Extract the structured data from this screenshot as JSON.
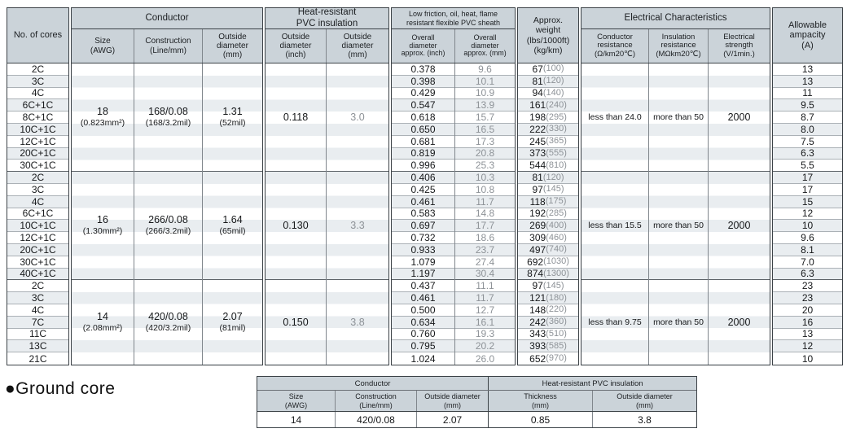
{
  "colors": {
    "header_bg": "#cbd3d9",
    "row_stripe": "#e9edf0",
    "metric_gray": "#8d9297"
  },
  "main_table": {
    "header": {
      "cores": "No. of cores",
      "conductor": {
        "title": "Conductor",
        "size": "Size\n(AWG)",
        "construction": "Construction\n(Line/mm)",
        "od": "Outside\ndiameter\n(mm)"
      },
      "insulation": {
        "title": "Heat-resistant\nPVC insulation",
        "od_inch": "Outside\ndiameter\n(inch)",
        "od_mm": "Outside\ndiameter\n(mm)"
      },
      "sheath": {
        "title": "Low friction, oil, heat, flame\nresistant flexible PVC sheath",
        "od_inch": "Overall\ndiameter\napprox. (inch)",
        "od_mm": "Overall\ndiameter\napprox. (mm)"
      },
      "weight": "Approx.\nweight\n(lbs/1000ft)\n(kg/km)",
      "electrical": {
        "title": "Electrical Characteristics",
        "resistance": "Conductor\nresistance\n(Ω/km20℃)",
        "insulation_res": "Insulation\nresistance\n(MΩkm20℃)",
        "strength": "Electrical\nstrength\n(V/1min.)"
      },
      "ampacity": "Allowable\nampacity\n(A)"
    },
    "groups": [
      {
        "size": "18",
        "size_note": "(0.823mm²)",
        "construction": "168/0.08",
        "construction_note": "(168/3.2mil)",
        "od": "1.31",
        "od_note": "(52mil)",
        "ins_inch": "0.118",
        "ins_mm": "3.0",
        "resistance": "less than 24.0",
        "insulation_res": "more than 50",
        "strength": "2000",
        "rows": [
          {
            "cores": "2C",
            "inch": "0.378",
            "mm": "9.6",
            "lbs": "67",
            "kg": "(100)",
            "amp": "13"
          },
          {
            "cores": "3C",
            "inch": "0.398",
            "mm": "10.1",
            "lbs": "81",
            "kg": "(120)",
            "amp": "13"
          },
          {
            "cores": "4C",
            "inch": "0.429",
            "mm": "10.9",
            "lbs": "94",
            "kg": "(140)",
            "amp": "11"
          },
          {
            "cores": "6C+1C",
            "inch": "0.547",
            "mm": "13.9",
            "lbs": "161",
            "kg": "(240)",
            "amp": "9.5"
          },
          {
            "cores": "8C+1C",
            "inch": "0.618",
            "mm": "15.7",
            "lbs": "198",
            "kg": "(295)",
            "amp": "8.7"
          },
          {
            "cores": "10C+1C",
            "inch": "0.650",
            "mm": "16.5",
            "lbs": "222",
            "kg": "(330)",
            "amp": "8.0"
          },
          {
            "cores": "12C+1C",
            "inch": "0.681",
            "mm": "17.3",
            "lbs": "245",
            "kg": "(365)",
            "amp": "7.5"
          },
          {
            "cores": "20C+1C",
            "inch": "0.819",
            "mm": "20.8",
            "lbs": "373",
            "kg": "(555)",
            "amp": "6.3"
          },
          {
            "cores": "30C+1C",
            "inch": "0.996",
            "mm": "25.3",
            "lbs": "544",
            "kg": "(810)",
            "amp": "5.5"
          }
        ]
      },
      {
        "size": "16",
        "size_note": "(1.30mm²)",
        "construction": "266/0.08",
        "construction_note": "(266/3.2mil)",
        "od": "1.64",
        "od_note": "(65mil)",
        "ins_inch": "0.130",
        "ins_mm": "3.3",
        "resistance": "less than 15.5",
        "insulation_res": "more than 50",
        "strength": "2000",
        "rows": [
          {
            "cores": "2C",
            "inch": "0.406",
            "mm": "10.3",
            "lbs": "81",
            "kg": "(120)",
            "amp": "17"
          },
          {
            "cores": "3C",
            "inch": "0.425",
            "mm": "10.8",
            "lbs": "97",
            "kg": "(145)",
            "amp": "17"
          },
          {
            "cores": "4C",
            "inch": "0.461",
            "mm": "11.7",
            "lbs": "118",
            "kg": "(175)",
            "amp": "15"
          },
          {
            "cores": "6C+1C",
            "inch": "0.583",
            "mm": "14.8",
            "lbs": "192",
            "kg": "(285)",
            "amp": "12"
          },
          {
            "cores": "10C+1C",
            "inch": "0.697",
            "mm": "17.7",
            "lbs": "269",
            "kg": "(400)",
            "amp": "10"
          },
          {
            "cores": "12C+1C",
            "inch": "0.732",
            "mm": "18.6",
            "lbs": "309",
            "kg": "(460)",
            "amp": "9.6"
          },
          {
            "cores": "20C+1C",
            "inch": "0.933",
            "mm": "23.7",
            "lbs": "497",
            "kg": "(740)",
            "amp": "8.1"
          },
          {
            "cores": "30C+1C",
            "inch": "1.079",
            "mm": "27.4",
            "lbs": "692",
            "kg": "(1030)",
            "amp": "7.0"
          },
          {
            "cores": "40C+1C",
            "inch": "1.197",
            "mm": "30.4",
            "lbs": "874",
            "kg": "(1300)",
            "amp": "6.3"
          }
        ]
      },
      {
        "size": "14",
        "size_note": "(2.08mm²)",
        "construction": "420/0.08",
        "construction_note": "(420/3.2mil)",
        "od": "2.07",
        "od_note": "(81mil)",
        "ins_inch": "0.150",
        "ins_mm": "3.8",
        "resistance": "less than 9.75",
        "insulation_res": "more than 50",
        "strength": "2000",
        "rows": [
          {
            "cores": "2C",
            "inch": "0.437",
            "mm": "11.1",
            "lbs": "97",
            "kg": "(145)",
            "amp": "23"
          },
          {
            "cores": "3C",
            "inch": "0.461",
            "mm": "11.7",
            "lbs": "121",
            "kg": "(180)",
            "amp": "23"
          },
          {
            "cores": "4C",
            "inch": "0.500",
            "mm": "12.7",
            "lbs": "148",
            "kg": "(220)",
            "amp": "20"
          },
          {
            "cores": "7C",
            "inch": "0.634",
            "mm": "16.1",
            "lbs": "242",
            "kg": "(360)",
            "amp": "16"
          },
          {
            "cores": "11C",
            "inch": "0.760",
            "mm": "19.3",
            "lbs": "343",
            "kg": "(510)",
            "amp": "13"
          },
          {
            "cores": "13C",
            "inch": "0.795",
            "mm": "20.2",
            "lbs": "393",
            "kg": "(585)",
            "amp": "12"
          },
          {
            "cores": "21C",
            "inch": "1.024",
            "mm": "26.0",
            "lbs": "652",
            "kg": "(970)",
            "amp": "10"
          }
        ]
      }
    ]
  },
  "ground": {
    "label": "●Ground core",
    "header": {
      "conductor": "Conductor",
      "insulation": "Heat-resistant PVC insulation",
      "size": "Size\n(AWG)",
      "construction": "Construction\n(Line/mm)",
      "od": "Outside diameter\n(mm)",
      "thickness": "Thickness\n(mm)",
      "od2": "Outside diameter\n(mm)"
    },
    "values": {
      "size": "14",
      "construction": "420/0.08",
      "od": "2.07",
      "thickness": "0.85",
      "od2": "3.8"
    }
  }
}
